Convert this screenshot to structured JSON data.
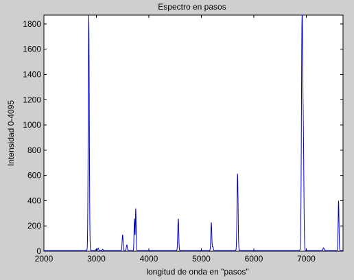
{
  "figure": {
    "background": "#cfcfcf"
  },
  "chart_data": {
    "type": "line",
    "title": "Espectro en pasos",
    "xlabel": "longitud de onda en \"pasos\"",
    "ylabel": "Intensidad 0-4095",
    "xlim": [
      2000,
      7700
    ],
    "ylim": [
      0,
      1870
    ],
    "xticks": [
      2000,
      3000,
      4000,
      5000,
      6000,
      7000
    ],
    "yticks": [
      0,
      200,
      400,
      600,
      800,
      1000,
      1200,
      1400,
      1600,
      1800
    ],
    "grid": false,
    "line_color": "#0000cc",
    "baseline": 5,
    "peaks": [
      {
        "center": 2855,
        "height": 1870,
        "width": 10
      },
      {
        "center": 2998,
        "height": 12,
        "width": 8
      },
      {
        "center": 3035,
        "height": 20,
        "width": 8
      },
      {
        "center": 3120,
        "height": 10,
        "width": 8
      },
      {
        "center": 3500,
        "height": 125,
        "width": 9
      },
      {
        "center": 3580,
        "height": 45,
        "width": 9
      },
      {
        "center": 3725,
        "height": 255,
        "width": 7
      },
      {
        "center": 3750,
        "height": 335,
        "width": 7
      },
      {
        "center": 4560,
        "height": 255,
        "width": 9
      },
      {
        "center": 5190,
        "height": 222,
        "width": 9
      },
      {
        "center": 5220,
        "height": 30,
        "width": 8
      },
      {
        "center": 5690,
        "height": 610,
        "width": 10
      },
      {
        "center": 6920,
        "height": 1870,
        "width": 12
      },
      {
        "center": 6945,
        "height": 760,
        "width": 10
      },
      {
        "center": 7330,
        "height": 22,
        "width": 10
      },
      {
        "center": 7615,
        "height": 395,
        "width": 8
      }
    ]
  }
}
